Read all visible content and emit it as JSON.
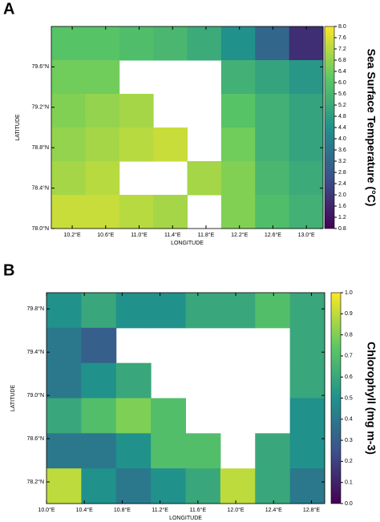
{
  "chart_data": [
    {
      "type": "map",
      "panel": "A",
      "xlabel": "LONGITUDE",
      "ylabel": "LATITUDE",
      "colorbar_label": "Sea Surface Temperature  (°C)",
      "xlim": [
        9.95,
        13.2
      ],
      "ylim": [
        78.0,
        80.0
      ],
      "xticks": [
        {
          "value": 10.2,
          "label": "10.2°E"
        },
        {
          "value": 10.6,
          "label": "10.6°E"
        },
        {
          "value": 11.0,
          "label": "11.0°E"
        },
        {
          "value": 11.4,
          "label": "11.4°E"
        },
        {
          "value": 11.8,
          "label": "11.8°E"
        },
        {
          "value": 12.2,
          "label": "12.2°E"
        },
        {
          "value": 12.6,
          "label": "12.6°E"
        },
        {
          "value": 13.0,
          "label": "13.0°E"
        }
      ],
      "yticks": [
        {
          "value": 78.0,
          "label": "78.0°N"
        },
        {
          "value": 78.4,
          "label": "78.4°N"
        },
        {
          "value": 78.8,
          "label": "78.8°N"
        },
        {
          "value": 79.2,
          "label": "79.2°N"
        },
        {
          "value": 79.6,
          "label": "79.6°N"
        }
      ],
      "cticks": [
        0.8,
        1.2,
        1.6,
        {
          "value": 2.0,
          "label": "2.0"
        },
        2.4,
        2.8,
        3.2,
        3.6,
        {
          "value": 4.0,
          "label": "4.0"
        },
        4.4,
        4.8,
        5.2,
        5.6,
        {
          "value": 6.0,
          "label": "6.0"
        },
        6.4,
        6.8,
        7.2,
        7.6,
        {
          "value": 8.0,
          "label": "8.0"
        }
      ],
      "colormap": [
        "#440154",
        "#3b528b",
        "#21918c",
        "#5ec962",
        "#fde725"
      ],
      "values": [
        [
          6.0,
          6.0,
          5.8,
          5.6,
          5.2,
          4.4,
          3.2,
          1.8
        ],
        [
          6.4,
          6.4,
          null,
          null,
          null,
          5.4,
          5.0,
          4.6
        ],
        [
          6.6,
          6.8,
          7.0,
          null,
          null,
          6.0,
          5.4,
          5.0
        ],
        [
          6.8,
          7.0,
          7.2,
          7.4,
          null,
          6.4,
          5.4,
          5.0
        ],
        [
          7.0,
          7.2,
          null,
          null,
          7.0,
          6.6,
          5.6,
          5.2
        ],
        [
          7.4,
          7.4,
          7.2,
          7.0,
          null,
          6.6,
          5.8,
          5.4
        ]
      ]
    },
    {
      "type": "map",
      "panel": "B",
      "xlabel": "LONGITUDE",
      "ylabel": "LATITUDE",
      "colorbar_label": "Chlorophyll  (mg m-3)",
      "xlim": [
        10.0,
        12.94
      ],
      "ylim": [
        78.0,
        79.95
      ],
      "xticks": [
        {
          "value": 10.0,
          "label": "10.0°E"
        },
        {
          "value": 10.4,
          "label": "10.4°E"
        },
        {
          "value": 10.8,
          "label": "10.8°E"
        },
        {
          "value": 11.2,
          "label": "11.2°E"
        },
        {
          "value": 11.6,
          "label": "11.6°E"
        },
        {
          "value": 12.0,
          "label": "12.0°E"
        },
        {
          "value": 12.4,
          "label": "12.4°E"
        },
        {
          "value": 12.8,
          "label": "12.8°E"
        }
      ],
      "yticks": [
        {
          "value": 78.2,
          "label": "78.2°N"
        },
        {
          "value": 78.6,
          "label": "78.6°N"
        },
        {
          "value": 79.0,
          "label": "79.0°N"
        },
        {
          "value": 79.4,
          "label": "79.4°N"
        },
        {
          "value": 79.8,
          "label": "79.8°N"
        }
      ],
      "cticks": [
        {
          "value": 0.0,
          "label": "0.0"
        },
        0.1,
        0.2,
        0.3,
        0.4,
        0.5,
        0.6,
        0.7,
        0.8,
        0.9,
        {
          "value": 1.0,
          "label": "1.0"
        }
      ],
      "colormap": [
        "#440154",
        "#3b528b",
        "#21918c",
        "#5ec962",
        "#fde725"
      ],
      "values": [
        [
          0.5,
          0.6,
          0.5,
          0.5,
          0.6,
          0.6,
          0.7,
          0.6
        ],
        [
          0.4,
          0.3,
          null,
          null,
          null,
          null,
          null,
          0.6
        ],
        [
          0.4,
          0.5,
          0.6,
          null,
          null,
          null,
          null,
          0.6
        ],
        [
          0.6,
          0.7,
          0.8,
          0.7,
          null,
          null,
          null,
          0.5
        ],
        [
          0.4,
          0.4,
          0.5,
          0.7,
          0.7,
          null,
          0.6,
          0.5
        ],
        [
          0.9,
          0.5,
          0.4,
          0.5,
          0.6,
          0.9,
          0.6,
          0.4
        ]
      ]
    }
  ]
}
